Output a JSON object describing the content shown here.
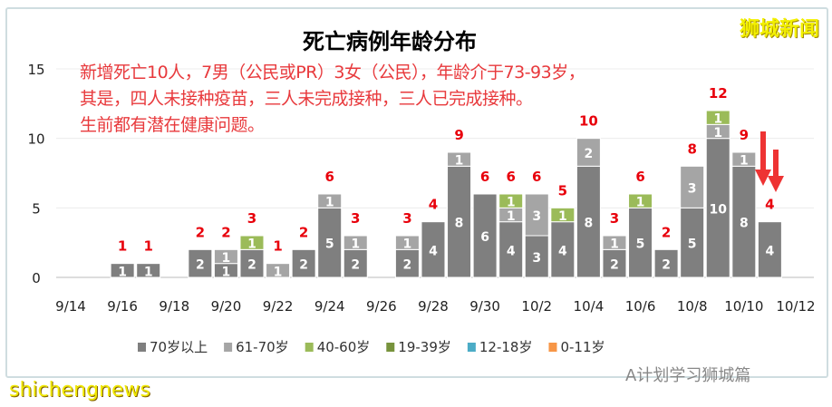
{
  "chart_data": {
    "type": "bar",
    "stacked": true,
    "title": "死亡病例年龄分布",
    "annotation": [
      "新增死亡10人，7男（公民或PR）3女（公民），年龄介于73-93岁，",
      "其是，四人未接种疫苗，三人未完成接种，三人已完成接种。",
      "生前都有潜在健康问题。"
    ],
    "dates": [
      "9/14",
      "9/15",
      "9/16",
      "9/17",
      "9/18",
      "9/19",
      "9/20",
      "9/21",
      "9/22",
      "9/23",
      "9/24",
      "9/25",
      "9/26",
      "9/27",
      "9/28",
      "9/29",
      "9/30",
      "10/1",
      "10/2",
      "10/3",
      "10/4",
      "10/5",
      "10/6",
      "10/7",
      "10/8",
      "10/9",
      "10/10",
      "10/11",
      "10/12"
    ],
    "x_tick_labels": [
      "9/14",
      "9/16",
      "9/18",
      "9/20",
      "9/22",
      "9/24",
      "9/26",
      "9/28",
      "9/30",
      "10/2",
      "10/4",
      "10/6",
      "10/8",
      "10/10",
      "10/12"
    ],
    "ylim": [
      0,
      15
    ],
    "yticks": [
      0,
      5,
      10,
      15
    ],
    "grid": true,
    "legend_position": "bottom",
    "series": [
      {
        "name": "70岁以上",
        "color": "#7f7f7f",
        "values": [
          0,
          0,
          1,
          1,
          0,
          2,
          1,
          2,
          0,
          2,
          5,
          2,
          0,
          2,
          4,
          8,
          6,
          4,
          3,
          4,
          8,
          2,
          5,
          2,
          5,
          10,
          8,
          4,
          0
        ]
      },
      {
        "name": "61-70岁",
        "color": "#a5a5a5",
        "values": [
          0,
          0,
          0,
          0,
          0,
          0,
          1,
          0,
          1,
          0,
          1,
          1,
          0,
          1,
          0,
          1,
          0,
          1,
          3,
          0,
          2,
          1,
          0,
          0,
          3,
          1,
          1,
          0,
          0
        ]
      },
      {
        "name": "40-60岁",
        "color": "#9bbb59",
        "values": [
          0,
          0,
          0,
          0,
          0,
          0,
          0,
          1,
          0,
          0,
          0,
          0,
          0,
          0,
          0,
          0,
          0,
          1,
          0,
          1,
          0,
          0,
          1,
          0,
          0,
          1,
          0,
          0,
          0
        ]
      },
      {
        "name": "19-39岁",
        "color": "#77933c",
        "values": [
          0,
          0,
          0,
          0,
          0,
          0,
          0,
          0,
          0,
          0,
          0,
          0,
          0,
          0,
          0,
          0,
          0,
          0,
          0,
          0,
          0,
          0,
          0,
          0,
          0,
          0,
          0,
          0,
          0
        ]
      },
      {
        "name": "12-18岁",
        "color": "#4bacc6",
        "values": [
          0,
          0,
          0,
          0,
          0,
          0,
          0,
          0,
          0,
          0,
          0,
          0,
          0,
          0,
          0,
          0,
          0,
          0,
          0,
          0,
          0,
          0,
          0,
          0,
          0,
          0,
          0,
          0,
          0
        ]
      },
      {
        "name": "0-11岁",
        "color": "#f79646",
        "values": [
          0,
          0,
          0,
          0,
          0,
          0,
          0,
          0,
          0,
          0,
          0,
          0,
          0,
          0,
          0,
          0,
          0,
          0,
          0,
          0,
          0,
          0,
          0,
          0,
          0,
          0,
          0,
          0,
          0
        ]
      }
    ],
    "total_label_color": "#e8000b"
  },
  "watermarks": {
    "top_right": "狮城新闻",
    "bottom_left": "shichengnews",
    "bottom_right": "A计划学习狮城篇"
  }
}
